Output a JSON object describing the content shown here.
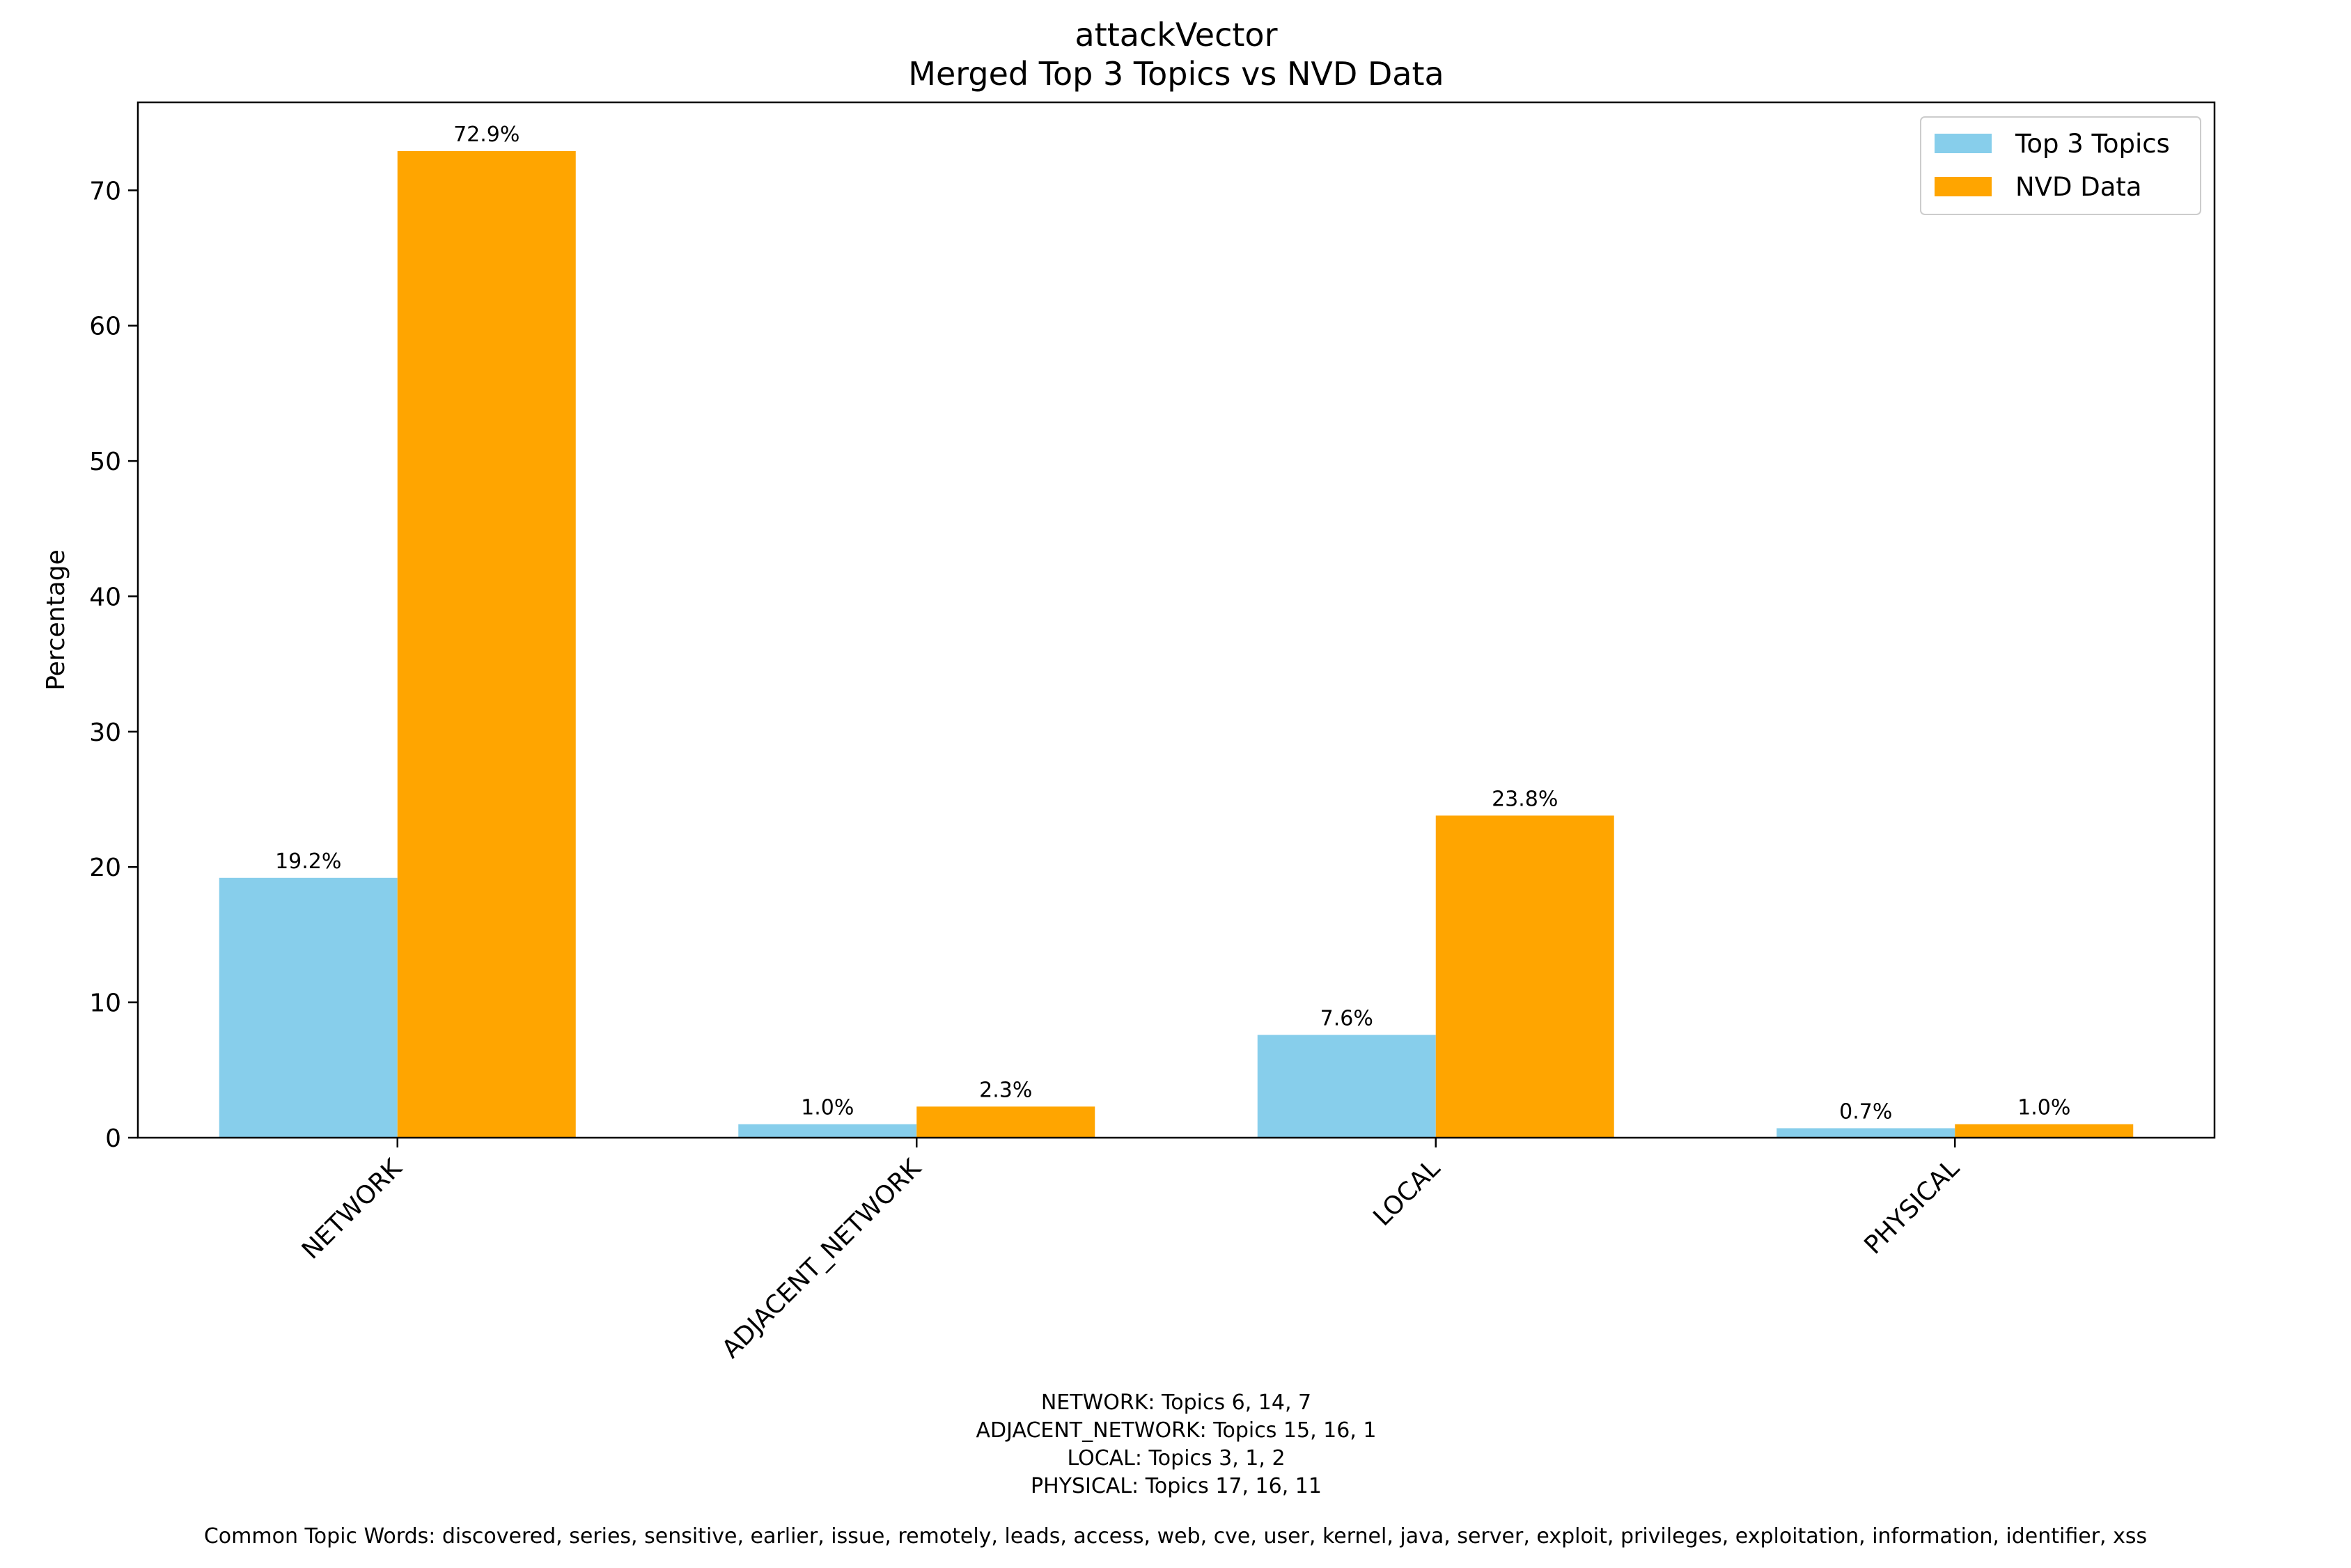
{
  "chart_data": {
    "type": "bar",
    "title": [
      "attackVector",
      "Merged Top 3 Topics vs NVD Data"
    ],
    "ylabel": "Percentage",
    "xlabel": "",
    "categories": [
      "NETWORK",
      "ADJACENT_NETWORK",
      "LOCAL",
      "PHYSICAL"
    ],
    "series": [
      {
        "name": "Top 3 Topics",
        "color": "#87CEEB",
        "values": [
          19.2,
          1.0,
          7.6,
          0.7
        ],
        "labels": [
          "19.2%",
          "1.0%",
          "7.6%",
          "0.7%"
        ]
      },
      {
        "name": "NVD Data",
        "color": "#FFA500",
        "values": [
          72.9,
          2.3,
          23.8,
          1.0
        ],
        "labels": [
          "72.9%",
          "2.3%",
          "23.8%",
          "1.0%"
        ]
      }
    ],
    "ylim": [
      0,
      76.5
    ],
    "yticks": [
      0,
      10,
      20,
      30,
      40,
      50,
      60,
      70
    ],
    "ytick_labels": [
      "0",
      "10",
      "20",
      "30",
      "40",
      "50",
      "60",
      "70"
    ],
    "grid": false,
    "legend": "top-right",
    "xtick_rotation": "45 degrees",
    "footnotes": [
      "NETWORK: Topics 6, 14, 7",
      "ADJACENT_NETWORK: Topics 15, 16, 1",
      "LOCAL: Topics 3, 1, 2",
      "PHYSICAL: Topics 17, 16, 11"
    ],
    "common_words": "Common Topic Words:  discovered,  series,  sensitive,  earlier,  issue,  remotely,  leads,  access,  web,  cve,  user,  kernel,  java,  server,  exploit,  privileges,  exploitation,  information,  identifier,  xss"
  }
}
